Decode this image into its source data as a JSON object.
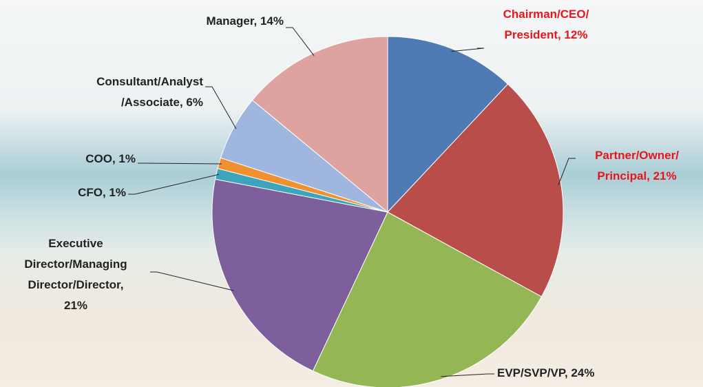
{
  "chart_data": {
    "type": "pie",
    "labels": [
      [
        "Chairman/CEO/",
        "President, 12%"
      ],
      [
        "Partner/Owner/",
        "Principal, 21%"
      ],
      [
        "EVP/SVP/VP, 24%"
      ],
      [
        "Executive",
        "Director/Managing",
        "Director/Director,",
        "21%"
      ],
      [
        "CFO, 1%"
      ],
      [
        "COO, 1%"
      ],
      [
        "Consultant/Analyst",
        "/Associate, 6%"
      ],
      [
        "Manager, 14%"
      ]
    ],
    "values": [
      12,
      21,
      24,
      21,
      1,
      1,
      6,
      14
    ],
    "colors": [
      "#4f7bb4",
      "#b94d4a",
      "#95b654",
      "#7c5f9b",
      "#3ca5bd",
      "#f0902f",
      "#9fb6de",
      "#dea3a1"
    ],
    "label_colors": [
      "#e8161b",
      "#e8161b",
      "#222222",
      "#222222",
      "#222222",
      "#222222",
      "#222222",
      "#222222"
    ]
  }
}
